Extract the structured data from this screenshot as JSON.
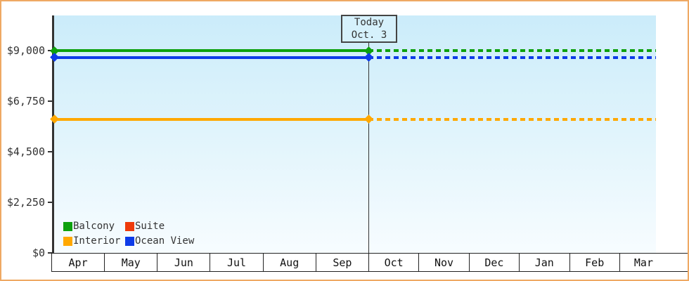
{
  "frame": {
    "border_color": "#efa963",
    "background": "#ffffff"
  },
  "chart_data": {
    "type": "line",
    "title": "",
    "xlabel": "",
    "ylabel": "",
    "categories": [
      "Apr",
      "May",
      "Jun",
      "Jul",
      "Aug",
      "Sep",
      "Oct",
      "Nov",
      "Dec",
      "Jan",
      "Feb",
      "Mar"
    ],
    "ylim": [
      0,
      9000
    ],
    "yticks": [
      {
        "value": 9000,
        "label": "$9,000"
      },
      {
        "value": 6750,
        "label": "$6,750"
      },
      {
        "value": 4500,
        "label": "$4,500"
      },
      {
        "value": 2250,
        "label": "$2,250"
      },
      {
        "value": 0,
        "label": "$0"
      }
    ],
    "series": [
      {
        "name": "Balcony",
        "color": "#0da10d",
        "value": 9000,
        "visible": true
      },
      {
        "name": "Suite",
        "color": "#ee3a0a",
        "value": null,
        "visible": false
      },
      {
        "name": "Interior",
        "color": "#ffa800",
        "value": 5940,
        "visible": true
      },
      {
        "name": "Ocean View",
        "color": "#0d3be8",
        "value": 8700,
        "visible": true
      }
    ],
    "today": {
      "label_line1": "Today",
      "label_line2": "Oct. 3",
      "month": "Oct",
      "day": 3
    },
    "style": {
      "grid": false,
      "legend_position": "bottom-left",
      "solid_before_today": true,
      "dashed_after_today": true,
      "plot_bg_top": "#cbecfa",
      "plot_bg_bottom": "#f7fcff",
      "axis_color": "#333333"
    }
  }
}
